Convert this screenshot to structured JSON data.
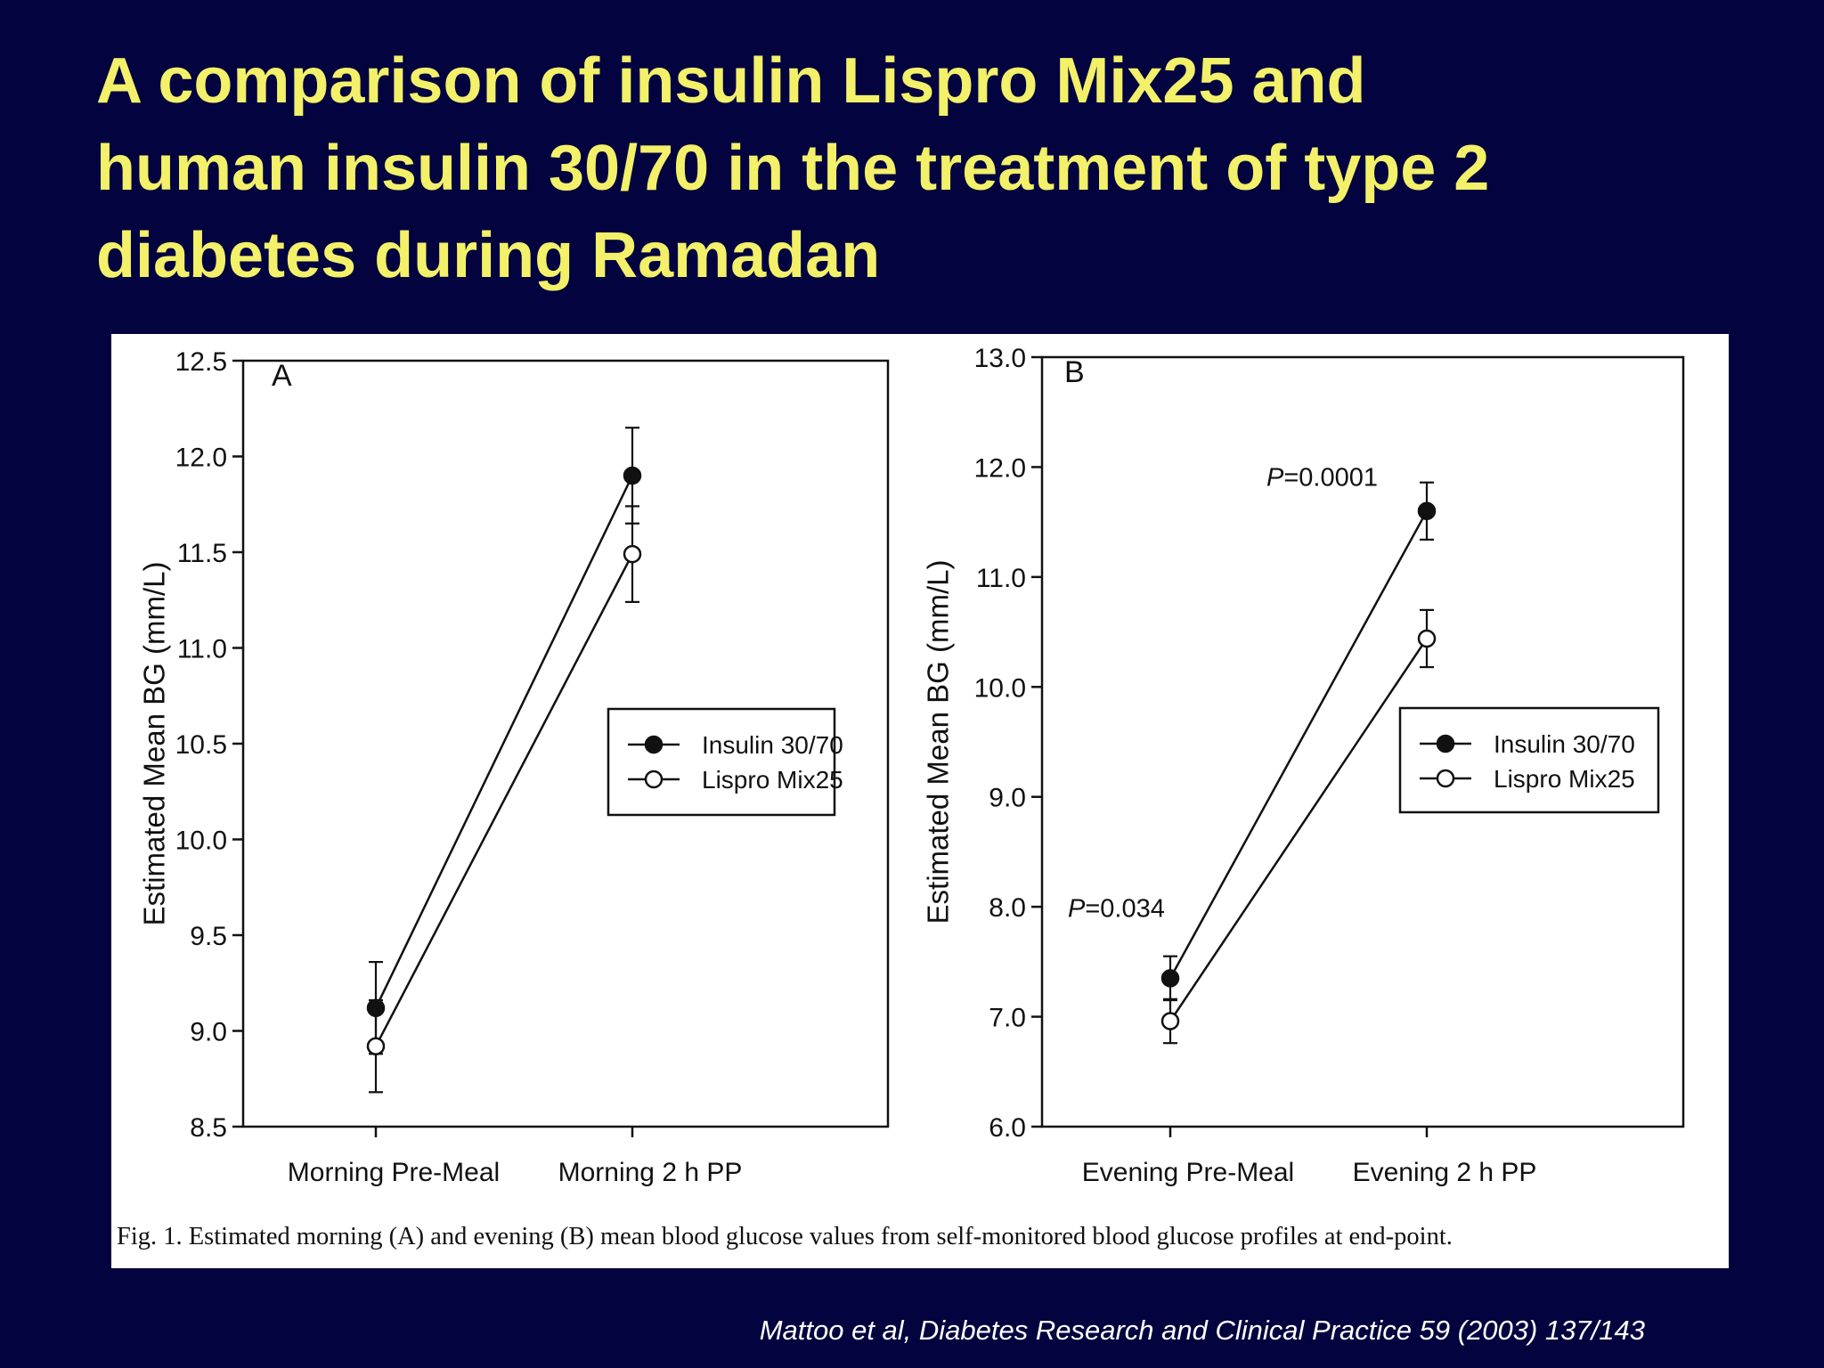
{
  "slide": {
    "title_lines": [
      "A comparison of insulin Lispro Mix25 and",
      "human insulin 30/70 in the treatment of type 2",
      "diabetes during Ramadan"
    ],
    "caption": "Fig. 1.  Estimated morning (A) and evening (B) mean blood glucose values from self-monitored blood glucose profiles at end-point.",
    "citation": "Mattoo et al, Diabetes Research and Clinical Practice 59 (2003) 137/143"
  },
  "colors": {
    "background": "#03033f",
    "title": "#f3f06a",
    "citation": "#ffffff",
    "panel": "#ffffff",
    "ink": "#111111"
  },
  "chart_data": [
    {
      "type": "line",
      "panel_label": "A",
      "categories": [
        "Morning Pre-Meal",
        "Morning 2 h PP"
      ],
      "ylabel": "Estimated Mean BG (mm/L)",
      "ylim": [
        8.5,
        12.5
      ],
      "yticks": [
        8.5,
        9.0,
        9.5,
        10.0,
        10.5,
        11.0,
        11.5,
        12.0,
        12.5
      ],
      "tick_decimals": 1,
      "legend_position": "right-middle",
      "series": [
        {
          "name": "Insulin 30/70",
          "marker": "filled",
          "values": [
            9.12,
            11.9
          ],
          "error": [
            0.24,
            0.25
          ]
        },
        {
          "name": "Lispro Mix25",
          "marker": "open",
          "values": [
            8.92,
            11.49
          ],
          "error": [
            0.24,
            0.25
          ]
        }
      ],
      "annotations": []
    },
    {
      "type": "line",
      "panel_label": "B",
      "categories": [
        "Evening Pre-Meal",
        "Evening 2 h PP"
      ],
      "ylabel": "Estimated Mean BG (mm/L)",
      "ylim": [
        6.0,
        13.0
      ],
      "yticks": [
        6.0,
        7.0,
        8.0,
        9.0,
        10.0,
        11.0,
        12.0,
        13.0
      ],
      "tick_decimals": 1,
      "legend_position": "right-middle",
      "series": [
        {
          "name": "Insulin 30/70",
          "marker": "filled",
          "values": [
            7.35,
            11.6
          ],
          "error": [
            0.2,
            0.26
          ]
        },
        {
          "name": "Lispro Mix25",
          "marker": "open",
          "values": [
            6.96,
            10.44
          ],
          "error": [
            0.2,
            0.26
          ]
        }
      ],
      "annotations": [
        {
          "italic": "P",
          "rest": "=0.034",
          "category_index": 0
        },
        {
          "italic": "P",
          "rest": "=0.0001",
          "category_index": 1
        }
      ]
    }
  ]
}
